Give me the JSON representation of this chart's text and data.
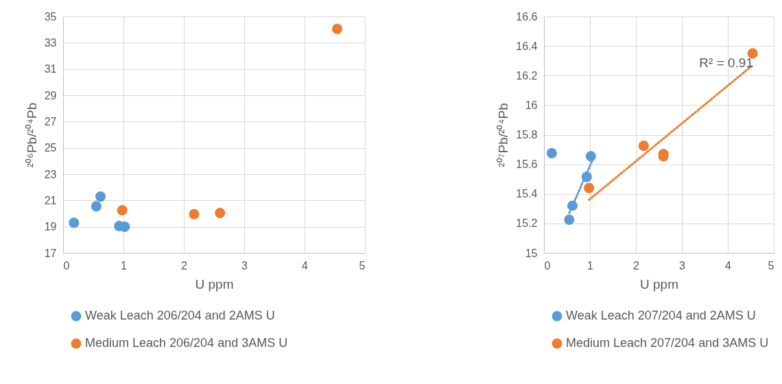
{
  "chart_data": [
    {
      "type": "scatter",
      "xlabel": "U ppm",
      "ylabel": "²⁰⁶Pb/²⁰⁴Pb",
      "xlim": [
        0,
        5
      ],
      "xticks": [
        0,
        1,
        2,
        3,
        4,
        5
      ],
      "ylim": [
        17,
        35
      ],
      "yticks": [
        17,
        19,
        21,
        23,
        25,
        27,
        29,
        31,
        33,
        35
      ],
      "grid": true,
      "legend": "bottom",
      "marker": "circle",
      "series": [
        {
          "name": "Weak Leach 206/204 and 2AMS U",
          "color": "#5b9bd5",
          "x": [
            0.18,
            0.55,
            0.62,
            0.93,
            1.02
          ],
          "values": [
            19.3,
            20.55,
            21.3,
            19.05,
            19.0
          ]
        },
        {
          "name": "Medium Leach 206/204 and 3AMS U",
          "color": "#ed7d31",
          "x": [
            0.98,
            2.17,
            2.6,
            4.54
          ],
          "values": [
            20.25,
            19.95,
            20.05,
            34.05
          ]
        }
      ]
    },
    {
      "type": "scatter",
      "xlabel": "U ppm",
      "ylabel": "²⁰⁷Pb/²⁰⁴Pb",
      "xlim": [
        0,
        5
      ],
      "xticks": [
        0,
        1,
        2,
        3,
        4,
        5
      ],
      "ylim": [
        15,
        16.6
      ],
      "yticks": [
        15,
        15.2,
        15.4,
        15.6,
        15.8,
        16,
        16.2,
        16.4,
        16.6
      ],
      "grid": true,
      "legend": "bottom",
      "marker": "circle",
      "annotations": [
        "R² = 0.91"
      ],
      "series": [
        {
          "name": "Weak Leach 207/204 and 2AMS U",
          "color": "#5b9bd5",
          "x": [
            0.17,
            0.55,
            0.62,
            0.93,
            1.02
          ],
          "values": [
            15.675,
            15.225,
            15.32,
            15.515,
            15.655
          ]
        },
        {
          "name": "Medium Leach 207/204 and 3AMS U",
          "color": "#ed7d31",
          "x": [
            0.98,
            2.17,
            2.6,
            2.6,
            4.54
          ],
          "values": [
            15.44,
            15.725,
            15.67,
            15.655,
            16.35
          ]
        },
        {
          "type": "line",
          "line_style": "dotted",
          "marker": "none",
          "color": "#5b9bd5",
          "x": [
            0.55,
            1.05
          ],
          "values": [
            15.27,
            15.625
          ]
        },
        {
          "type": "line",
          "line_style": "dotted",
          "marker": "none",
          "color": "#ed7d31",
          "x": [
            0.98,
            4.54
          ],
          "values": [
            15.36,
            16.27
          ]
        }
      ]
    }
  ]
}
